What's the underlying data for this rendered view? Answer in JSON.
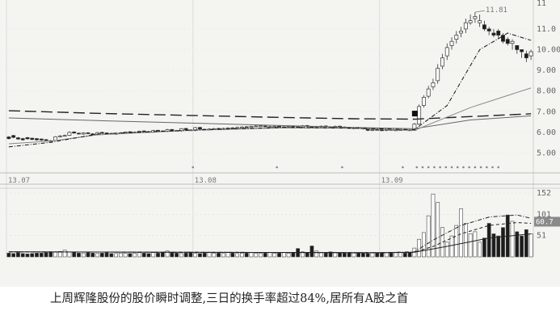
{
  "chart_data": [
    {
      "type": "candlestick",
      "x_tick_labels": [
        "13.07",
        "13.08",
        "13.09"
      ],
      "price_axis_labels": [
        "11.0",
        "10.00",
        "9.00",
        "8.00",
        "7.00",
        "6.00",
        "5.00"
      ],
      "price_axis_partial_top": "11",
      "high_annotation": "11.81",
      "ylim": [
        4.2,
        12.4
      ],
      "grid": true,
      "price": {
        "categories": [
          "d1",
          "d2",
          "d3",
          "d4",
          "d5",
          "d6",
          "d7",
          "d8",
          "d9",
          "d10",
          "d11",
          "d12",
          "d13",
          "d14",
          "d15",
          "d16",
          "d17",
          "d18",
          "d19",
          "d20",
          "d21",
          "d22",
          "d23",
          "d24",
          "d25",
          "d26",
          "d27",
          "d28",
          "d29",
          "d30",
          "d31",
          "d32",
          "d33",
          "d34",
          "d35",
          "d36",
          "d37",
          "d38",
          "d39",
          "d40",
          "d41",
          "d42",
          "d43",
          "d44",
          "d45",
          "d46",
          "d47",
          "d48",
          "d49",
          "d50",
          "d51",
          "d52",
          "d53",
          "d54",
          "d55",
          "d56",
          "d57",
          "d58",
          "d59",
          "d60",
          "d61",
          "d62",
          "d63",
          "d64",
          "d65",
          "d66",
          "d67",
          "d68",
          "d69",
          "d70",
          "d71",
          "d72",
          "d73",
          "d74",
          "d75",
          "d76",
          "d77",
          "d78",
          "d79",
          "d80",
          "d81",
          "d82",
          "d83",
          "d84",
          "d85",
          "d86",
          "d87",
          "d88",
          "d89",
          "d90",
          "d91",
          "d92",
          "d93",
          "d94",
          "d95",
          "d96",
          "d97",
          "d98",
          "d99",
          "d100",
          "d101",
          "d102",
          "d103",
          "d104",
          "d105",
          "d106",
          "d107",
          "d108",
          "d109",
          "d110",
          "d111",
          "d112",
          "d113"
        ],
        "open": [
          5.78,
          5.85,
          5.74,
          5.7,
          5.75,
          5.72,
          5.7,
          5.68,
          5.65,
          5.6,
          5.62,
          5.8,
          5.84,
          5.86,
          6.02,
          5.96,
          5.92,
          5.98,
          5.93,
          5.9,
          6.0,
          5.97,
          5.95,
          5.92,
          5.96,
          5.99,
          6.03,
          6.0,
          6.02,
          6.07,
          6.04,
          6.01,
          6.1,
          6.07,
          6.05,
          6.14,
          6.09,
          6.07,
          6.19,
          6.12,
          6.1,
          6.24,
          6.15,
          6.12,
          6.17,
          6.19,
          6.14,
          6.2,
          6.22,
          6.19,
          6.25,
          6.27,
          6.24,
          6.3,
          6.32,
          6.31,
          6.27,
          6.29,
          6.3,
          6.26,
          6.28,
          6.31,
          6.27,
          6.25,
          6.33,
          6.28,
          6.26,
          6.29,
          6.31,
          6.27,
          6.24,
          6.3,
          6.26,
          6.23,
          6.18,
          6.23,
          6.21,
          6.16,
          6.09,
          6.14,
          6.12,
          6.09,
          6.14,
          6.12,
          6.11,
          6.14,
          6.12,
          6.1,
          6.4,
          7.3,
          7.75,
          8.2,
          8.5,
          9.2,
          9.7,
          10.2,
          10.5,
          10.8,
          11.0,
          11.3,
          11.5,
          11.3,
          11.2,
          11.0,
          10.8,
          10.9,
          10.7,
          10.5,
          10.3,
          10.2,
          10.0,
          9.8,
          9.7
        ],
        "close": [
          5.7,
          5.76,
          5.68,
          5.64,
          5.69,
          5.66,
          5.64,
          5.63,
          5.61,
          5.58,
          5.79,
          5.83,
          5.85,
          6.0,
          5.97,
          5.93,
          5.97,
          5.94,
          5.91,
          5.99,
          5.98,
          5.96,
          5.93,
          5.95,
          5.98,
          6.02,
          6.01,
          6.01,
          6.06,
          6.05,
          6.02,
          6.09,
          6.08,
          6.06,
          6.13,
          6.1,
          6.08,
          6.18,
          6.13,
          6.11,
          6.23,
          6.16,
          6.13,
          6.16,
          6.18,
          6.15,
          6.19,
          6.21,
          6.2,
          6.24,
          6.26,
          6.25,
          6.29,
          6.31,
          6.32,
          6.28,
          6.28,
          6.29,
          6.27,
          6.27,
          6.3,
          6.28,
          6.26,
          6.32,
          6.29,
          6.27,
          6.28,
          6.3,
          6.28,
          6.25,
          6.29,
          6.27,
          6.24,
          6.19,
          6.22,
          6.22,
          6.17,
          6.1,
          6.13,
          6.13,
          6.1,
          6.13,
          6.13,
          6.12,
          6.13,
          6.13,
          6.11,
          6.4,
          7.25,
          7.7,
          8.1,
          8.4,
          9.1,
          9.6,
          10.1,
          10.4,
          10.7,
          10.9,
          11.3,
          11.4,
          11.6,
          11.4,
          11.0,
          10.9,
          10.7,
          10.7,
          10.4,
          10.3,
          10.4,
          10.0,
          9.9,
          9.6,
          9.9
        ],
        "high": [
          5.82,
          5.88,
          5.78,
          5.74,
          5.78,
          5.75,
          5.73,
          5.71,
          5.68,
          5.63,
          5.82,
          5.87,
          5.9,
          6.05,
          6.05,
          5.99,
          6.0,
          6.01,
          5.96,
          6.02,
          6.03,
          6.0,
          5.98,
          5.99,
          6.02,
          6.05,
          6.06,
          6.04,
          6.09,
          6.1,
          6.07,
          6.12,
          6.13,
          6.1,
          6.17,
          6.17,
          6.12,
          6.21,
          6.22,
          6.15,
          6.27,
          6.27,
          6.18,
          6.2,
          6.22,
          6.22,
          6.23,
          6.25,
          6.25,
          6.28,
          6.3,
          6.3,
          6.33,
          6.35,
          6.36,
          6.34,
          6.32,
          6.33,
          6.33,
          6.3,
          6.34,
          6.34,
          6.3,
          6.36,
          6.36,
          6.31,
          6.32,
          6.34,
          6.34,
          6.3,
          6.33,
          6.33,
          6.29,
          6.25,
          6.26,
          6.27,
          6.24,
          6.19,
          6.17,
          6.17,
          6.15,
          6.17,
          6.17,
          6.15,
          6.17,
          6.17,
          6.15,
          6.45,
          7.35,
          7.8,
          8.25,
          8.6,
          9.3,
          9.8,
          10.3,
          10.6,
          10.9,
          11.1,
          11.5,
          11.7,
          11.81,
          11.7,
          11.4,
          11.1,
          11.0,
          11.0,
          10.8,
          10.6,
          10.5,
          10.2,
          10.0,
          9.95,
          10.0
        ],
        "low": [
          5.66,
          5.72,
          5.64,
          5.6,
          5.65,
          5.62,
          5.6,
          5.59,
          5.57,
          5.54,
          5.59,
          5.76,
          5.8,
          5.83,
          5.93,
          5.9,
          5.88,
          5.91,
          5.88,
          5.87,
          5.95,
          5.93,
          5.9,
          5.89,
          5.93,
          5.96,
          5.98,
          5.96,
          5.99,
          6.02,
          5.99,
          5.98,
          6.05,
          6.03,
          6.01,
          6.06,
          6.05,
          6.03,
          6.09,
          6.08,
          6.06,
          6.12,
          6.11,
          6.09,
          6.13,
          6.11,
          6.11,
          6.16,
          6.17,
          6.15,
          6.21,
          6.22,
          6.2,
          6.26,
          6.28,
          6.25,
          6.24,
          6.26,
          6.24,
          6.23,
          6.25,
          6.24,
          6.23,
          6.22,
          6.25,
          6.24,
          6.23,
          6.25,
          6.25,
          6.22,
          6.21,
          6.23,
          6.21,
          6.16,
          6.15,
          6.19,
          6.14,
          6.06,
          6.06,
          6.1,
          6.07,
          6.06,
          6.1,
          6.09,
          6.08,
          6.1,
          6.08,
          6.07,
          6.35,
          7.2,
          7.65,
          8.05,
          8.35,
          9.05,
          9.5,
          10.0,
          10.3,
          10.6,
          10.8,
          11.2,
          11.3,
          11.1,
          10.9,
          10.7,
          10.6,
          10.5,
          10.3,
          10.2,
          10.0,
          9.8,
          9.6,
          9.4,
          9.5
        ]
      },
      "moving_averages": [
        {
          "style": "long-dash",
          "color": "#222222",
          "values": [
            [
              1,
              7.05
            ],
            [
              20,
              6.92
            ],
            [
              40,
              6.82
            ],
            [
              60,
              6.72
            ],
            [
              75,
              6.66
            ],
            [
              88,
              6.64
            ],
            [
              113,
              6.9
            ]
          ]
        },
        {
          "style": "solid",
          "color": "#666666",
          "values": [
            [
              1,
              6.7
            ],
            [
              20,
              6.57
            ],
            [
              40,
              6.45
            ],
            [
              60,
              6.33
            ],
            [
              75,
              6.24
            ],
            [
              88,
              6.18
            ],
            [
              100,
              6.6
            ],
            [
              113,
              6.8
            ]
          ]
        },
        {
          "style": "solid-thin",
          "color": "#888888",
          "values": [
            [
              1,
              5.45
            ],
            [
              10,
              5.58
            ],
            [
              20,
              5.88
            ],
            [
              40,
              6.1
            ],
            [
              60,
              6.22
            ],
            [
              75,
              6.2
            ],
            [
              88,
              6.1
            ],
            [
              100,
              7.2
            ],
            [
              113,
              8.15
            ]
          ]
        },
        {
          "style": "dash-dot",
          "color": "#111111",
          "values": [
            [
              1,
              5.3
            ],
            [
              10,
              5.52
            ],
            [
              20,
              5.92
            ],
            [
              40,
              6.11
            ],
            [
              60,
              6.24
            ],
            [
              75,
              6.21
            ],
            [
              88,
              6.13
            ],
            [
              95,
              7.3
            ],
            [
              102,
              10.0
            ],
            [
              108,
              10.8
            ],
            [
              113,
              10.45
            ]
          ]
        }
      ],
      "volume_axis_labels": [
        "152",
        "101",
        "51"
      ],
      "volume_marker_label": "60.7",
      "volume_ylim": [
        0,
        160
      ],
      "volume": [
        9,
        8,
        10,
        8,
        7,
        8,
        9,
        9,
        10,
        11,
        12,
        13,
        16,
        12,
        11,
        9,
        8,
        10,
        9,
        8,
        9,
        10,
        8,
        8,
        9,
        9,
        8,
        9,
        10,
        9,
        8,
        10,
        9,
        11,
        14,
        10,
        9,
        8,
        9,
        10,
        9,
        8,
        9,
        10,
        9,
        9,
        8,
        10,
        9,
        8,
        9,
        9,
        10,
        9,
        9,
        9,
        10,
        9,
        9,
        10,
        9,
        10,
        20,
        12,
        11,
        26,
        14,
        11,
        9,
        12,
        11,
        10,
        9,
        10,
        9,
        9,
        9,
        8,
        10,
        9,
        9,
        10,
        9,
        10,
        10,
        9,
        10,
        21,
        42,
        58,
        98,
        150,
        130,
        70,
        35,
        50,
        75,
        115,
        80,
        55,
        60,
        35,
        45,
        80,
        55,
        50,
        70,
        100,
        85,
        60,
        50,
        65,
        55
      ],
      "volume_ma": [
        {
          "style": "dash-dot",
          "values": [
            [
              1,
              12
            ],
            [
              80,
              10
            ],
            [
              88,
              12
            ],
            [
              92,
              40
            ],
            [
              98,
              75
            ],
            [
              104,
              95
            ],
            [
              110,
              100
            ],
            [
              113,
              92
            ]
          ]
        },
        {
          "style": "dashed",
          "values": [
            [
              1,
              12
            ],
            [
              80,
              10
            ],
            [
              88,
              11
            ],
            [
              92,
              25
            ],
            [
              98,
              55
            ],
            [
              104,
              75
            ],
            [
              110,
              82
            ],
            [
              113,
              80
            ]
          ]
        },
        {
          "style": "solid",
          "values": [
            [
              1,
              12
            ],
            [
              80,
              10
            ],
            [
              88,
              11
            ],
            [
              95,
              25
            ],
            [
              104,
              45
            ],
            [
              113,
              55
            ]
          ]
        }
      ]
    }
  ],
  "caption": "上周辉隆股份的股价瞬时调整,三日的换手率超过84%,居所有A股之首"
}
